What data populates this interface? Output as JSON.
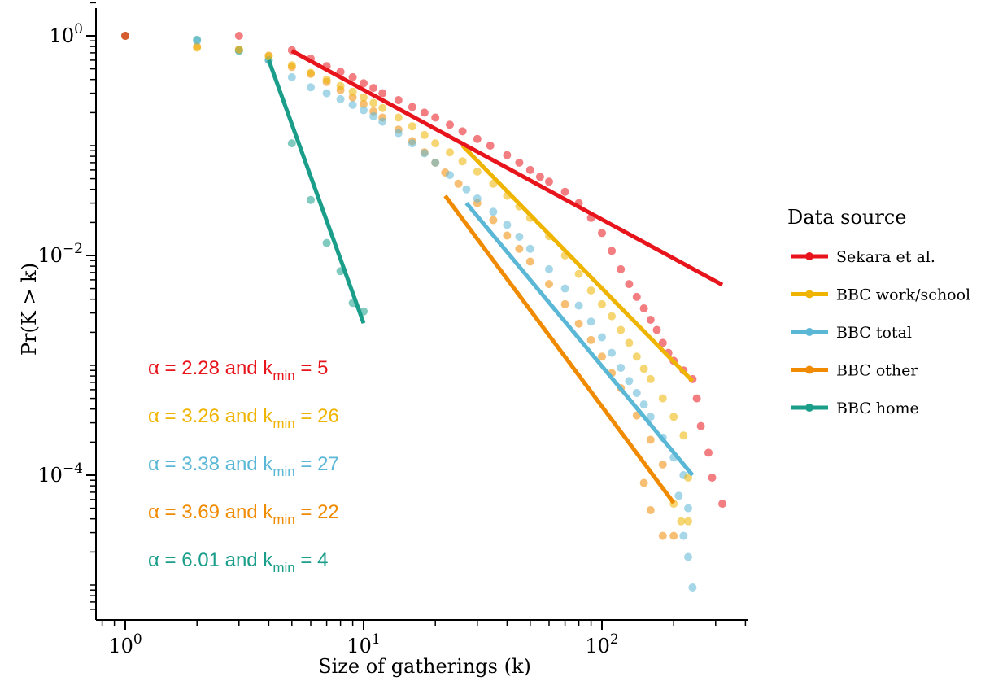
{
  "chart_data": {
    "type": "scatter",
    "xlabel": "Size of gatherings (k)",
    "ylabel": "Pr(K > k)",
    "xscale": "log",
    "yscale": "log",
    "xlim": [
      0.8,
      400
    ],
    "ylim": [
      5e-06,
      2
    ],
    "x_ticks": [
      {
        "value": 1,
        "base": "10",
        "exp": "0"
      },
      {
        "value": 10,
        "base": "10",
        "exp": "1"
      },
      {
        "value": 100,
        "base": "10",
        "exp": "2"
      }
    ],
    "y_ticks": [
      {
        "value": 1,
        "base": "10",
        "exp": "0"
      },
      {
        "value": 0.01,
        "base": "10",
        "exp": "−2"
      },
      {
        "value": 0.0001,
        "base": "10",
        "exp": "−4"
      }
    ],
    "legend": {
      "title": "Data source",
      "placement": "right"
    },
    "series": [
      {
        "name": "Sekara et al.",
        "color": "#e8141b",
        "annotation": {
          "prefix": "α = 2.28 and k",
          "sub": "min",
          "suffix": " = 5"
        },
        "fit": {
          "alpha": 2.28,
          "kmin": 5,
          "x": [
            5,
            320
          ],
          "y": [
            0.73,
            0.0054
          ]
        },
        "points": [
          [
            1,
            1.0
          ],
          [
            3,
            1.0
          ],
          [
            5,
            0.74
          ],
          [
            6,
            0.62
          ],
          [
            7,
            0.53
          ],
          [
            8,
            0.47
          ],
          [
            9,
            0.42
          ],
          [
            10,
            0.37
          ],
          [
            11,
            0.335
          ],
          [
            12,
            0.3
          ],
          [
            14,
            0.26
          ],
          [
            16,
            0.225
          ],
          [
            18,
            0.2
          ],
          [
            20,
            0.18
          ],
          [
            23,
            0.155
          ],
          [
            26,
            0.135
          ],
          [
            30,
            0.115
          ],
          [
            34,
            0.1
          ],
          [
            40,
            0.082
          ],
          [
            45,
            0.07
          ],
          [
            50,
            0.06
          ],
          [
            55,
            0.052
          ],
          [
            60,
            0.047
          ],
          [
            70,
            0.038
          ],
          [
            80,
            0.03
          ],
          [
            90,
            0.022
          ],
          [
            100,
            0.016
          ],
          [
            110,
            0.011
          ],
          [
            120,
            0.0075
          ],
          [
            130,
            0.0055
          ],
          [
            140,
            0.0042
          ],
          [
            150,
            0.0033
          ],
          [
            160,
            0.0026
          ],
          [
            170,
            0.0021
          ],
          [
            180,
            0.0016
          ],
          [
            190,
            0.0013
          ],
          [
            200,
            0.0011
          ],
          [
            220,
            0.0009
          ],
          [
            240,
            0.00075
          ],
          [
            250,
            0.0005
          ],
          [
            260,
            0.00028
          ],
          [
            280,
            0.00016
          ],
          [
            290,
            9.5e-05
          ],
          [
            320,
            5.5e-05
          ]
        ]
      },
      {
        "name": "BBC work/school",
        "color": "#efb400",
        "annotation": {
          "prefix": "α = 3.26 and k",
          "sub": "min",
          "suffix": " = 26"
        },
        "fit": {
          "alpha": 3.26,
          "kmin": 26,
          "x": [
            26,
            240
          ],
          "y": [
            0.1,
            0.00072
          ]
        },
        "points": [
          [
            1,
            1.0
          ],
          [
            2,
            0.78
          ],
          [
            3,
            0.75
          ],
          [
            4,
            0.65
          ],
          [
            5,
            0.54
          ],
          [
            6,
            0.46
          ],
          [
            7,
            0.4
          ],
          [
            8,
            0.35
          ],
          [
            9,
            0.31
          ],
          [
            10,
            0.275
          ],
          [
            11,
            0.245
          ],
          [
            12,
            0.22
          ],
          [
            14,
            0.18
          ],
          [
            16,
            0.15
          ],
          [
            18,
            0.125
          ],
          [
            20,
            0.105
          ],
          [
            23,
            0.087
          ],
          [
            26,
            0.072
          ],
          [
            30,
            0.058
          ],
          [
            35,
            0.045
          ],
          [
            40,
            0.035
          ],
          [
            45,
            0.028
          ],
          [
            50,
            0.022
          ],
          [
            60,
            0.015
          ],
          [
            70,
            0.01
          ],
          [
            80,
            0.0068
          ],
          [
            90,
            0.0048
          ],
          [
            100,
            0.0036
          ],
          [
            110,
            0.0028
          ],
          [
            120,
            0.0021
          ],
          [
            130,
            0.0016
          ],
          [
            140,
            0.0012
          ],
          [
            150,
            0.00093
          ],
          [
            160,
            0.00075
          ],
          [
            180,
            0.0005
          ],
          [
            200,
            0.00034
          ],
          [
            220,
            0.00023
          ],
          [
            230,
            9.5e-05
          ],
          [
            200,
            5.5e-05
          ],
          [
            230,
            3.8e-05
          ],
          [
            215,
            3.8e-05
          ]
        ]
      },
      {
        "name": "BBC total",
        "color": "#5bb7d6",
        "annotation": {
          "prefix": "α = 3.38 and k",
          "sub": "min",
          "suffix": " = 27"
        },
        "fit": {
          "alpha": 3.38,
          "kmin": 27,
          "x": [
            27,
            240
          ],
          "y": [
            0.03,
            0.0001
          ]
        },
        "points": [
          [
            1,
            1.0
          ],
          [
            2,
            0.9
          ],
          [
            3,
            0.74
          ],
          [
            4,
            0.6
          ],
          [
            5,
            0.42
          ],
          [
            6,
            0.34
          ],
          [
            7,
            0.3
          ],
          [
            8,
            0.265
          ],
          [
            9,
            0.235
          ],
          [
            10,
            0.21
          ],
          [
            11,
            0.185
          ],
          [
            12,
            0.165
          ],
          [
            14,
            0.13
          ],
          [
            16,
            0.105
          ],
          [
            18,
            0.085
          ],
          [
            20,
            0.07
          ],
          [
            23,
            0.054
          ],
          [
            27,
            0.04
          ],
          [
            30,
            0.033
          ],
          [
            35,
            0.025
          ],
          [
            40,
            0.019
          ],
          [
            45,
            0.0148
          ],
          [
            50,
            0.0115
          ],
          [
            60,
            0.0075
          ],
          [
            70,
            0.005
          ],
          [
            80,
            0.0035
          ],
          [
            90,
            0.0025
          ],
          [
            100,
            0.0018
          ],
          [
            110,
            0.0013
          ],
          [
            120,
            0.00095
          ],
          [
            130,
            0.00072
          ],
          [
            140,
            0.00056
          ],
          [
            150,
            0.00044
          ],
          [
            160,
            0.00034
          ],
          [
            180,
            0.00022
          ],
          [
            200,
            0.000145
          ],
          [
            220,
            0.0001
          ],
          [
            210,
            6.5e-05
          ],
          [
            230,
            5e-05
          ],
          [
            220,
            2.8e-05
          ],
          [
            230,
            1.8e-05
          ],
          [
            240,
            9.5e-06
          ]
        ]
      },
      {
        "name": "BBC other",
        "color": "#f08a00",
        "annotation": {
          "prefix": "α = 3.69 and k",
          "sub": "min",
          "suffix": " = 22"
        },
        "fit": {
          "alpha": 3.69,
          "kmin": 22,
          "x": [
            22,
            200
          ],
          "y": [
            0.035,
            5.6e-05
          ]
        },
        "points": [
          [
            1,
            1.0
          ],
          [
            2,
            0.8
          ],
          [
            3,
            0.75
          ],
          [
            4,
            0.66
          ],
          [
            5,
            0.52
          ],
          [
            6,
            0.45
          ],
          [
            7,
            0.38
          ],
          [
            8,
            0.32
          ],
          [
            9,
            0.275
          ],
          [
            10,
            0.24
          ],
          [
            11,
            0.205
          ],
          [
            12,
            0.18
          ],
          [
            14,
            0.14
          ],
          [
            16,
            0.11
          ],
          [
            18,
            0.087
          ],
          [
            20,
            0.07
          ],
          [
            22,
            0.057
          ],
          [
            25,
            0.045
          ],
          [
            30,
            0.03
          ],
          [
            35,
            0.021
          ],
          [
            40,
            0.0152
          ],
          [
            45,
            0.0115
          ],
          [
            50,
            0.0088
          ],
          [
            60,
            0.0055
          ],
          [
            70,
            0.0036
          ],
          [
            80,
            0.0024
          ],
          [
            90,
            0.0017
          ],
          [
            100,
            0.0012
          ],
          [
            110,
            0.00085
          ],
          [
            120,
            0.00062
          ],
          [
            140,
            0.00035
          ],
          [
            160,
            0.00021
          ],
          [
            180,
            0.000125
          ],
          [
            150,
            8.5e-05
          ],
          [
            160,
            4.8e-05
          ],
          [
            200,
            2.8e-05
          ],
          [
            180,
            2.8e-05
          ]
        ]
      },
      {
        "name": "BBC home",
        "color": "#1a9e8a",
        "annotation": {
          "prefix": "α = 6.01 and k",
          "sub": "min",
          "suffix": " = 4"
        },
        "fit": {
          "alpha": 6.01,
          "kmin": 4,
          "x": [
            4,
            10
          ],
          "y": [
            0.6,
            0.00242
          ]
        },
        "points": [
          [
            1,
            1.0
          ],
          [
            2,
            0.92
          ],
          [
            3,
            0.73
          ],
          [
            4,
            0.6
          ],
          [
            5,
            0.105
          ],
          [
            6,
            0.032
          ],
          [
            7,
            0.013
          ],
          [
            8,
            0.0072
          ],
          [
            9,
            0.0037
          ],
          [
            10,
            0.0031
          ]
        ]
      }
    ]
  }
}
